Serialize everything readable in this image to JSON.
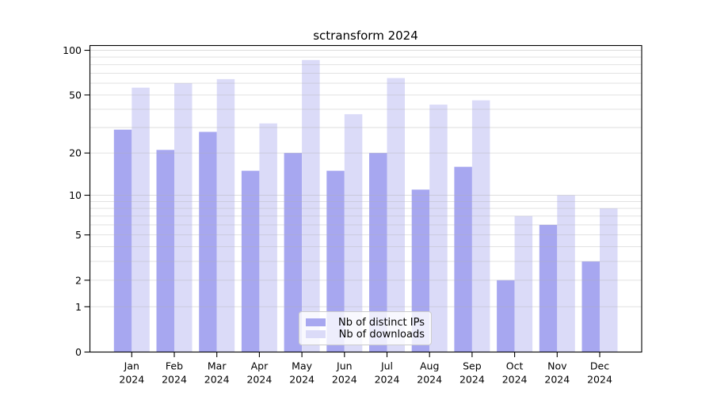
{
  "chart_data": {
    "type": "bar",
    "title": "sctransform 2024",
    "categories": [
      "Jan",
      "Feb",
      "Mar",
      "Apr",
      "May",
      "Jun",
      "Jul",
      "Aug",
      "Sep",
      "Oct",
      "Nov",
      "Dec"
    ],
    "year_label": "2024",
    "series": [
      {
        "name": "Nb of distinct IPs",
        "color": "#a7a7f0",
        "values": [
          29,
          21,
          28,
          15,
          20,
          15,
          20,
          11,
          16,
          2,
          6,
          3
        ]
      },
      {
        "name": "Nb of downloads",
        "color": "#dbdbf8",
        "values": [
          56,
          60,
          64,
          32,
          86,
          37,
          65,
          43,
          46,
          7,
          10,
          8
        ]
      }
    ],
    "yscale": "log1p",
    "ylim": [
      0,
      107
    ],
    "y_ticks_labeled": [
      0,
      1,
      2,
      5,
      10,
      20,
      50,
      100
    ],
    "y_gridlines": [
      1,
      2,
      3,
      4,
      5,
      6,
      7,
      8,
      9,
      10,
      20,
      30,
      40,
      50,
      60,
      70,
      80,
      90,
      100
    ],
    "grid": true,
    "legend_position": "lower center"
  }
}
